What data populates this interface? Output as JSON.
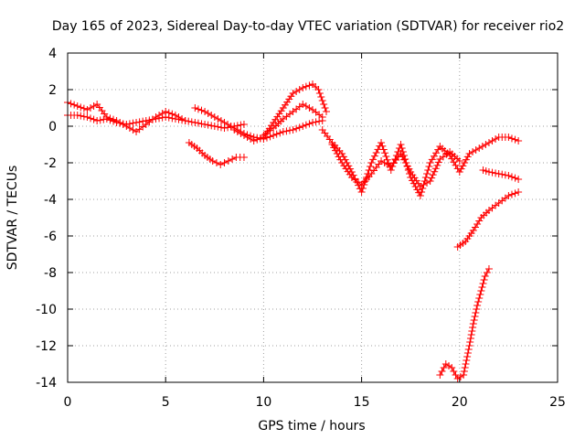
{
  "chart_data": {
    "type": "scatter",
    "title": "Day 165 of 2023, Sidereal Day-to-day VTEC variation (SDTVAR) for receiver rio2",
    "xlabel": "GPS time / hours",
    "ylabel": "SDTVAR / TECUs",
    "xlim": [
      0,
      25
    ],
    "ylim": [
      -14,
      4
    ],
    "x_ticks": [
      "0",
      "5",
      "10",
      "15",
      "20",
      "25"
    ],
    "y_ticks": [
      "4",
      "2",
      "0",
      "-2",
      "-4",
      "-6",
      "-8",
      "-10",
      "-12",
      "-14"
    ],
    "grid": true,
    "marker": "plus",
    "color": "#ff0000",
    "series": [
      {
        "x": [
          0,
          0.5,
          1,
          1.5,
          2,
          2.5,
          3,
          3.5,
          4,
          4.5,
          5,
          5.5,
          6,
          6.5,
          7,
          7.5,
          8,
          8.5,
          9
        ],
        "y": [
          0.6,
          0.6,
          0.5,
          0.3,
          0.4,
          0.2,
          0.1,
          0.2,
          0.3,
          0.4,
          0.5,
          0.4,
          0.3,
          0.2,
          0.1,
          0.0,
          -0.1,
          0.0,
          0.1
        ]
      },
      {
        "x": [
          0,
          0.5,
          1,
          1.5,
          2,
          2.5,
          3,
          3.5,
          4,
          4.5,
          5,
          5.5,
          6
        ],
        "y": [
          1.3,
          1.1,
          0.9,
          1.2,
          0.5,
          0.3,
          0.0,
          -0.3,
          0.1,
          0.5,
          0.8,
          0.6,
          0.3
        ]
      },
      {
        "x": [
          6.5,
          7,
          7.5,
          8,
          8.5,
          9,
          9.5,
          10,
          10.5,
          11,
          11.5,
          12,
          12.5,
          13
        ],
        "y": [
          1.0,
          0.8,
          0.5,
          0.2,
          -0.1,
          -0.4,
          -0.6,
          -0.7,
          -0.5,
          -0.3,
          -0.2,
          0.0,
          0.2,
          0.3
        ]
      },
      {
        "x": [
          6.2,
          6.6,
          7,
          7.4,
          7.8,
          8.2,
          8.6,
          9.0
        ],
        "y": [
          -0.9,
          -1.2,
          -1.6,
          -1.9,
          -2.1,
          -1.9,
          -1.7,
          -1.7
        ]
      },
      {
        "x": [
          8.5,
          9,
          9.5,
          10,
          10.5,
          11,
          11.5,
          12,
          12.5,
          12.8,
          13.2
        ],
        "y": [
          -0.2,
          -0.5,
          -0.8,
          -0.6,
          0.2,
          1.0,
          1.8,
          2.1,
          2.3,
          2.0,
          0.8
        ]
      },
      {
        "x": [
          10,
          10.5,
          11,
          11.5,
          12,
          12.5,
          13
        ],
        "y": [
          -0.5,
          -0.1,
          0.4,
          0.8,
          1.2,
          0.9,
          0.5
        ]
      },
      {
        "x": [
          13,
          13.5,
          14,
          14.5,
          15,
          15.5,
          16,
          16.5,
          17,
          17.5,
          18,
          18.5,
          19,
          19.5,
          20,
          20.5,
          21,
          21.5,
          22,
          22.5,
          23
        ],
        "y": [
          -0.2,
          -0.9,
          -1.5,
          -2.5,
          -3.6,
          -2.0,
          -0.9,
          -2.4,
          -1.0,
          -2.8,
          -3.8,
          -2.0,
          -1.1,
          -1.6,
          -2.5,
          -1.5,
          -1.2,
          -0.9,
          -0.6,
          -0.6,
          -0.8
        ]
      },
      {
        "x": [
          13.5,
          14,
          14.5,
          15,
          15.5,
          16,
          16.5,
          17,
          17.5,
          18,
          18.5,
          19,
          19.5,
          20
        ],
        "y": [
          -1.0,
          -2.0,
          -2.8,
          -3.2,
          -2.6,
          -1.9,
          -2.2,
          -1.5,
          -2.5,
          -3.3,
          -3.0,
          -1.8,
          -1.4,
          -1.9
        ]
      },
      {
        "x": [
          21.2,
          21.5,
          22,
          22.5,
          23
        ],
        "y": [
          -2.4,
          -2.5,
          -2.6,
          -2.7,
          -2.9
        ]
      },
      {
        "x": [
          19.9,
          20.3,
          20.7,
          21.1,
          21.5,
          22,
          22.5,
          23
        ],
        "y": [
          -6.6,
          -6.3,
          -5.7,
          -5.0,
          -4.6,
          -4.2,
          -3.8,
          -3.6
        ]
      },
      {
        "x": [
          19,
          19.3,
          19.6,
          19.9,
          20.2,
          20.5,
          20.7,
          20.9,
          21.1,
          21.3,
          21.5
        ],
        "y": [
          -13.6,
          -13.0,
          -13.2,
          -13.8,
          -13.6,
          -12.0,
          -10.8,
          -9.8,
          -9.0,
          -8.2,
          -7.8
        ]
      }
    ]
  }
}
